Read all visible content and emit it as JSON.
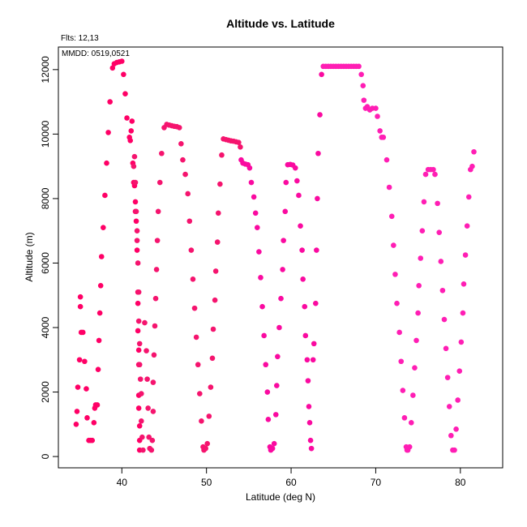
{
  "chart_data": {
    "type": "scatter",
    "title": "Altitude vs. Latitude",
    "subtitle": "Flts: 12,13",
    "annotation": "MMDD: 0519,0521",
    "xlabel": "Latitude (deg N)",
    "ylabel": "Altitude (m)",
    "xlim": [
      32.5,
      85
    ],
    "ylim": [
      -350,
      12700
    ],
    "xticks": [
      40,
      50,
      60,
      70,
      80
    ],
    "yticks": [
      0,
      2000,
      4000,
      6000,
      8000,
      10000,
      12000
    ],
    "grid": false,
    "series": [
      {
        "color": "#ff0066",
        "points": [
          [
            34.6,
            1000
          ],
          [
            34.7,
            1400
          ],
          [
            34.8,
            2150
          ],
          [
            35.0,
            3000
          ],
          [
            35.1,
            4650
          ],
          [
            35.1,
            4950
          ],
          [
            35.2,
            3850
          ],
          [
            35.4,
            3850
          ],
          [
            35.6,
            2950
          ],
          [
            35.8,
            2100
          ],
          [
            35.9,
            1200
          ],
          [
            36.1,
            500
          ],
          [
            36.3,
            500
          ],
          [
            36.5,
            500
          ],
          [
            36.7,
            1050
          ],
          [
            36.8,
            1500
          ],
          [
            36.9,
            1600
          ],
          [
            37.1,
            1600
          ],
          [
            37.2,
            2700
          ],
          [
            37.3,
            3600
          ],
          [
            37.4,
            4450
          ],
          [
            37.5,
            5300
          ],
          [
            37.6,
            6200
          ],
          [
            37.8,
            7100
          ],
          [
            38.0,
            8100
          ],
          [
            38.2,
            9100
          ],
          [
            38.4,
            10050
          ],
          [
            38.6,
            11000
          ],
          [
            38.9,
            12050
          ],
          [
            39.1,
            12180
          ],
          [
            39.4,
            12220
          ],
          [
            39.7,
            12240
          ],
          [
            40.0,
            12260
          ],
          [
            40.2,
            11850
          ],
          [
            40.4,
            11250
          ],
          [
            40.6,
            10500
          ],
          [
            40.9,
            9900
          ],
          [
            41.0,
            9800
          ],
          [
            41.1,
            10100
          ],
          [
            41.2,
            10400
          ],
          [
            41.3,
            9100
          ],
          [
            41.4,
            8500
          ],
          [
            41.5,
            8400
          ],
          [
            41.6,
            7900
          ],
          [
            41.6,
            7600
          ],
          [
            41.7,
            7300
          ],
          [
            41.8,
            6400
          ],
          [
            41.9,
            5100
          ],
          [
            41.9,
            4750
          ],
          [
            41.9,
            3900
          ],
          [
            42.0,
            3300
          ],
          [
            42.0,
            2850
          ],
          [
            42.0,
            1900
          ],
          [
            42.0,
            1500
          ],
          [
            42.1,
            950
          ],
          [
            42.1,
            500
          ],
          [
            42.1,
            200
          ]
        ]
      },
      {
        "color": "#f5146e",
        "points": [
          [
            41.4,
            9000
          ],
          [
            41.5,
            9300
          ],
          [
            41.6,
            8500
          ],
          [
            41.7,
            7600
          ],
          [
            41.8,
            7000
          ],
          [
            41.8,
            6700
          ],
          [
            41.9,
            6000
          ],
          [
            42.0,
            5100
          ],
          [
            42.0,
            4200
          ],
          [
            42.1,
            3500
          ],
          [
            42.1,
            2850
          ],
          [
            42.2,
            2400
          ],
          [
            42.3,
            1950
          ],
          [
            42.3,
            1100
          ],
          [
            42.4,
            600
          ],
          [
            42.5,
            200
          ],
          [
            42.7,
            4150
          ],
          [
            42.9,
            3280
          ],
          [
            43.0,
            2400
          ],
          [
            43.1,
            1500
          ],
          [
            43.2,
            600
          ],
          [
            43.3,
            250
          ],
          [
            43.5,
            200
          ],
          [
            43.6,
            500
          ],
          [
            43.7,
            1400
          ],
          [
            43.7,
            2300
          ],
          [
            43.8,
            3150
          ],
          [
            43.9,
            4050
          ],
          [
            44.0,
            4900
          ],
          [
            44.1,
            5800
          ],
          [
            44.2,
            6700
          ],
          [
            44.3,
            7600
          ],
          [
            44.5,
            8500
          ],
          [
            44.7,
            9400
          ],
          [
            45.0,
            10200
          ],
          [
            45.3,
            10300
          ],
          [
            45.6,
            10280
          ],
          [
            45.9,
            10260
          ],
          [
            46.2,
            10240
          ],
          [
            46.5,
            10230
          ],
          [
            46.8,
            10200
          ],
          [
            47.0,
            9700
          ],
          [
            47.2,
            9200
          ],
          [
            47.5,
            8750
          ],
          [
            47.8,
            8150
          ],
          [
            48.0,
            7300
          ],
          [
            48.2,
            6400
          ],
          [
            48.4,
            5500
          ],
          [
            48.6,
            4600
          ],
          [
            48.8,
            3700
          ],
          [
            49.0,
            2850
          ],
          [
            49.2,
            1950
          ],
          [
            49.4,
            1100
          ],
          [
            49.6,
            300
          ],
          [
            49.7,
            200
          ],
          [
            49.9,
            250
          ],
          [
            50.1,
            400
          ],
          [
            50.3,
            1250
          ],
          [
            50.5,
            2150
          ],
          [
            50.7,
            3050
          ],
          [
            50.8,
            3950
          ],
          [
            51.0,
            4850
          ],
          [
            51.1,
            5750
          ],
          [
            51.3,
            6650
          ],
          [
            51.4,
            7550
          ],
          [
            51.6,
            8450
          ],
          [
            51.8,
            9350
          ],
          [
            52.0,
            9850
          ],
          [
            52.3,
            9830
          ],
          [
            52.6,
            9810
          ],
          [
            52.9,
            9790
          ],
          [
            53.2,
            9780
          ],
          [
            53.5,
            9760
          ],
          [
            53.8,
            9740
          ],
          [
            54.0,
            9600
          ]
        ]
      },
      {
        "color": "#fa0aa0",
        "points": [
          [
            54.1,
            9200
          ],
          [
            54.3,
            9100
          ],
          [
            54.6,
            9070
          ],
          [
            54.9,
            9050
          ],
          [
            55.1,
            8950
          ],
          [
            55.3,
            8500
          ],
          [
            55.6,
            8050
          ],
          [
            55.8,
            7550
          ],
          [
            56.0,
            7100
          ],
          [
            56.2,
            6350
          ],
          [
            56.4,
            5550
          ],
          [
            56.6,
            4650
          ],
          [
            56.8,
            3750
          ],
          [
            57.0,
            2850
          ],
          [
            57.2,
            2000
          ],
          [
            57.3,
            1150
          ],
          [
            57.5,
            300
          ],
          [
            57.6,
            200
          ],
          [
            57.8,
            250
          ],
          [
            58.0,
            400
          ],
          [
            58.2,
            1300
          ],
          [
            58.3,
            2200
          ],
          [
            58.4,
            3100
          ],
          [
            58.6,
            4000
          ],
          [
            58.8,
            4900
          ],
          [
            59.0,
            5800
          ],
          [
            59.1,
            6700
          ],
          [
            59.3,
            7600
          ],
          [
            59.4,
            8500
          ],
          [
            59.6,
            9050
          ],
          [
            59.9,
            9060
          ],
          [
            60.2,
            9040
          ],
          [
            60.5,
            8950
          ],
          [
            60.7,
            8550
          ],
          [
            60.9,
            8100
          ],
          [
            61.1,
            7150
          ],
          [
            61.3,
            6400
          ],
          [
            61.4,
            5500
          ],
          [
            61.6,
            4650
          ],
          [
            61.7,
            3750
          ],
          [
            61.9,
            3000
          ],
          [
            62.0,
            2350
          ],
          [
            62.1,
            1550
          ],
          [
            62.2,
            1050
          ],
          [
            62.3,
            500
          ],
          [
            62.4,
            250
          ],
          [
            62.6,
            3000
          ],
          [
            62.7,
            3500
          ],
          [
            62.9,
            4750
          ],
          [
            63.0,
            6400
          ],
          [
            63.1,
            8000
          ],
          [
            63.2,
            9400
          ],
          [
            63.4,
            10600
          ],
          [
            63.6,
            11850
          ]
        ]
      },
      {
        "color": "#ff1eb4",
        "points": [
          [
            63.8,
            12100
          ],
          [
            64.1,
            12100
          ],
          [
            64.4,
            12100
          ],
          [
            64.7,
            12100
          ],
          [
            65.0,
            12100
          ],
          [
            65.3,
            12100
          ],
          [
            65.6,
            12100
          ],
          [
            65.9,
            12100
          ],
          [
            66.2,
            12100
          ],
          [
            66.5,
            12100
          ],
          [
            66.8,
            12100
          ],
          [
            67.1,
            12100
          ],
          [
            67.4,
            12100
          ],
          [
            67.7,
            12100
          ],
          [
            68.0,
            12100
          ],
          [
            68.3,
            11850
          ],
          [
            68.5,
            11500
          ],
          [
            68.6,
            11050
          ],
          [
            68.8,
            10800
          ],
          [
            69.0,
            10850
          ],
          [
            69.3,
            10750
          ],
          [
            69.6,
            10800
          ],
          [
            70.0,
            10800
          ],
          [
            70.2,
            10550
          ],
          [
            70.5,
            10100
          ],
          [
            70.7,
            9900
          ],
          [
            70.9,
            9900
          ],
          [
            71.3,
            9200
          ],
          [
            71.6,
            8350
          ],
          [
            71.9,
            7450
          ],
          [
            72.1,
            6550
          ],
          [
            72.3,
            5650
          ],
          [
            72.5,
            4750
          ],
          [
            72.8,
            3850
          ],
          [
            73.0,
            2950
          ],
          [
            73.2,
            2050
          ],
          [
            73.4,
            1200
          ],
          [
            73.6,
            300
          ],
          [
            73.7,
            200
          ],
          [
            73.8,
            200
          ],
          [
            74.0,
            300
          ],
          [
            74.2,
            1050
          ],
          [
            74.4,
            1900
          ],
          [
            74.6,
            2750
          ],
          [
            74.8,
            3600
          ],
          [
            75.0,
            4450
          ],
          [
            75.1,
            5300
          ],
          [
            75.3,
            6150
          ],
          [
            75.5,
            7000
          ],
          [
            75.7,
            7900
          ],
          [
            75.9,
            8750
          ],
          [
            76.2,
            8900
          ],
          [
            76.5,
            8900
          ],
          [
            76.8,
            8900
          ],
          [
            77.0,
            8750
          ],
          [
            77.3,
            7850
          ],
          [
            77.5,
            6950
          ],
          [
            77.7,
            6050
          ],
          [
            77.9,
            5150
          ],
          [
            78.1,
            4250
          ],
          [
            78.3,
            3350
          ],
          [
            78.5,
            2450
          ],
          [
            78.7,
            1550
          ],
          [
            78.9,
            650
          ],
          [
            79.1,
            200
          ],
          [
            79.3,
            200
          ],
          [
            79.5,
            850
          ],
          [
            79.7,
            1750
          ],
          [
            79.9,
            2650
          ],
          [
            80.1,
            3550
          ],
          [
            80.3,
            4450
          ],
          [
            80.4,
            5350
          ],
          [
            80.6,
            6250
          ],
          [
            80.8,
            7150
          ],
          [
            81.0,
            8050
          ],
          [
            81.2,
            8900
          ],
          [
            81.4,
            9000
          ],
          [
            81.6,
            9450
          ]
        ]
      }
    ]
  }
}
